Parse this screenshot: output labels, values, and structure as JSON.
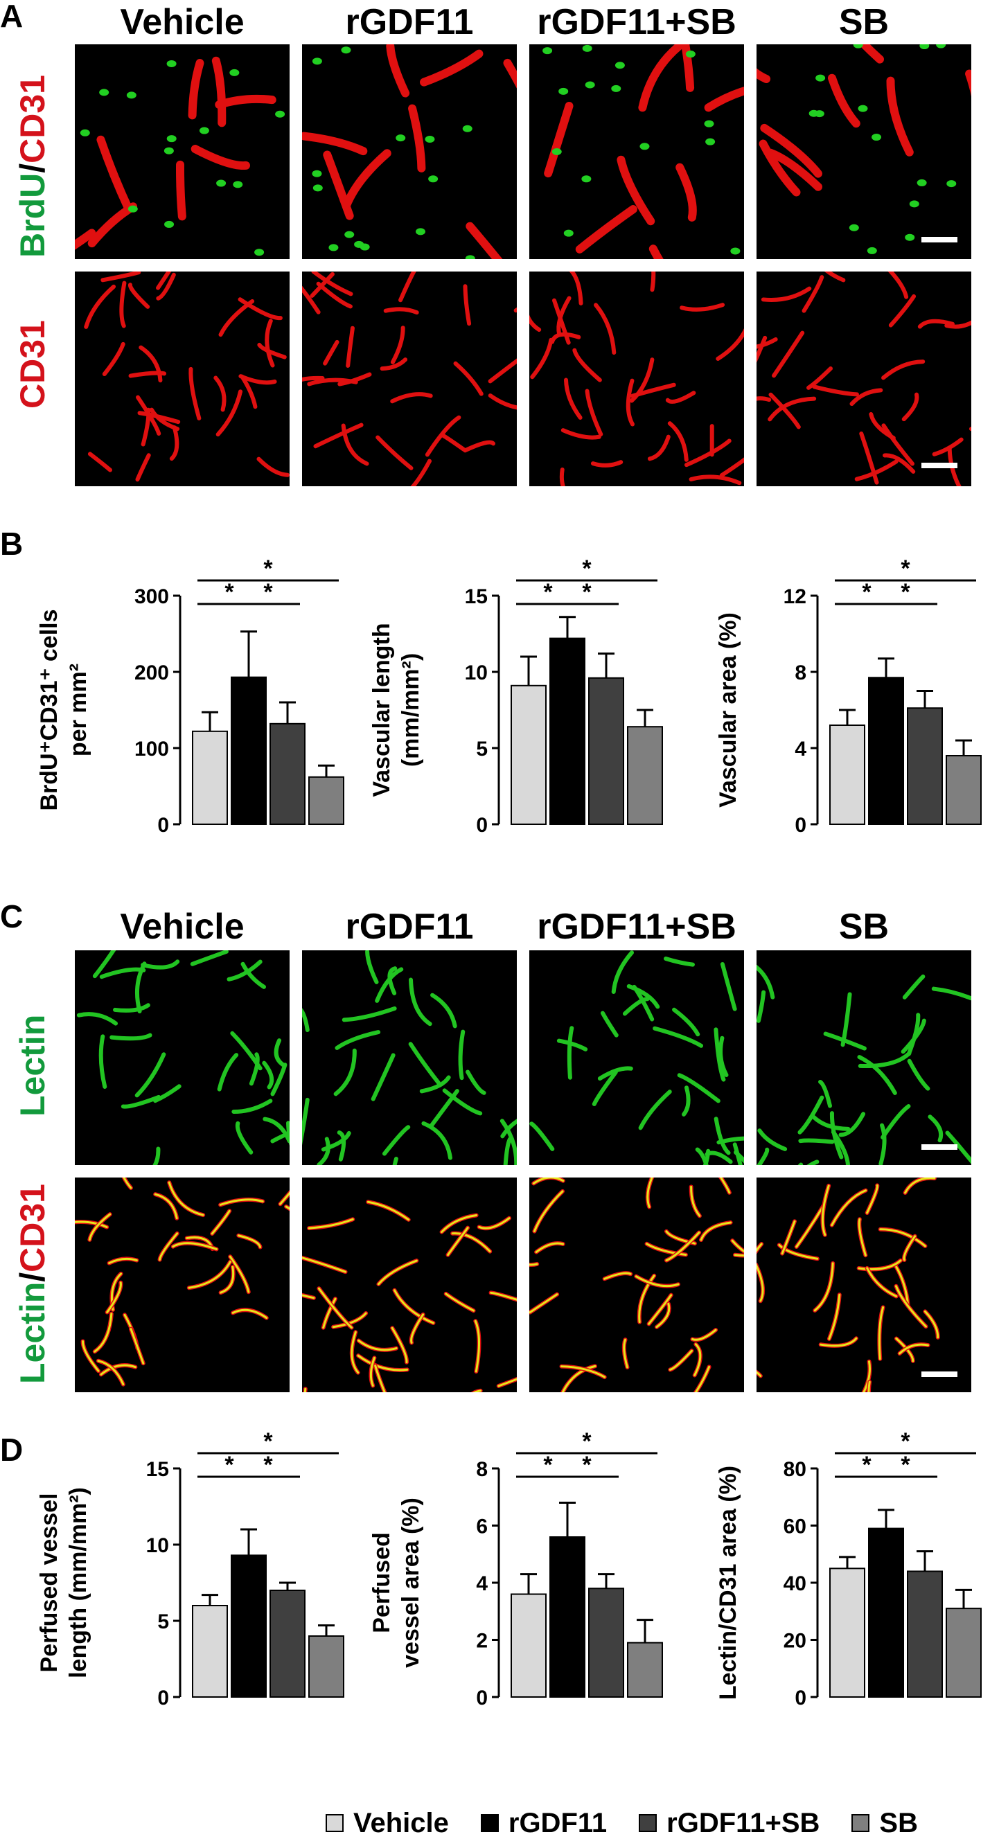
{
  "panels": {
    "a": "A",
    "b": "B",
    "c": "C",
    "d": "D"
  },
  "groups": [
    "Vehicle",
    "rGDF11",
    "rGDF11+SB",
    "SB"
  ],
  "row_labels": {
    "a_top": {
      "green": "BrdU",
      "sep": "/",
      "red": "CD31"
    },
    "a_bottom": {
      "red": "CD31"
    },
    "c_top": {
      "green": "Lectin"
    },
    "c_bottom": {
      "green": "Lectin",
      "sep": "/",
      "red": "CD31"
    }
  },
  "colors": {
    "vehicle": "#d9d9d9",
    "rgdf11": "#000000",
    "rgdf11_sb": "#404040",
    "sb": "#7f7f7f",
    "label_green": "#129a3c",
    "label_red": "#d4121b"
  },
  "chart_data": [
    {
      "type": "bar",
      "ylabel": "BrdU⁺CD31⁺ cells per mm²",
      "ylabel_lines": [
        "BrdU⁺CD31⁺ cells",
        "per mm²"
      ],
      "categories": [
        "Vehicle",
        "rGDF11",
        "rGDF11+SB",
        "SB"
      ],
      "values": [
        122,
        193,
        132,
        62
      ],
      "errors": [
        25,
        60,
        28,
        15
      ],
      "ylim": [
        0,
        300
      ],
      "yticks": [
        "0",
        "100",
        "200",
        "300"
      ],
      "significance": [
        "*",
        "*",
        "*"
      ]
    },
    {
      "type": "bar",
      "ylabel": "Vascular length (mm/mm²)",
      "ylabel_lines": [
        "Vascular length",
        "(mm/mm²)"
      ],
      "categories": [
        "Vehicle",
        "rGDF11",
        "rGDF11+SB",
        "SB"
      ],
      "values": [
        9.1,
        12.2,
        9.6,
        6.4
      ],
      "errors": [
        1.9,
        1.4,
        1.6,
        1.1
      ],
      "ylim": [
        0,
        15
      ],
      "yticks": [
        "0",
        "5",
        "10",
        "15"
      ],
      "significance": [
        "*",
        "*",
        "*"
      ]
    },
    {
      "type": "bar",
      "ylabel": "Vascular area (%)",
      "ylabel_lines": [
        "Vascular area (%)"
      ],
      "categories": [
        "Vehicle",
        "rGDF11",
        "rGDF11+SB",
        "SB"
      ],
      "values": [
        5.2,
        7.7,
        6.1,
        3.6
      ],
      "errors": [
        0.8,
        1.0,
        0.9,
        0.8
      ],
      "ylim": [
        0,
        12
      ],
      "yticks": [
        "0",
        "4",
        "8",
        "12"
      ],
      "significance": [
        "*",
        "*",
        "*"
      ]
    },
    {
      "type": "bar",
      "ylabel": "Perfused vessel length (mm/mm²)",
      "ylabel_lines": [
        "Perfused vessel",
        "length (mm/mm²)"
      ],
      "categories": [
        "Vehicle",
        "rGDF11",
        "rGDF11+SB",
        "SB"
      ],
      "values": [
        6.0,
        9.3,
        7.0,
        4.0
      ],
      "errors": [
        0.7,
        1.7,
        0.5,
        0.7
      ],
      "ylim": [
        0,
        15
      ],
      "yticks": [
        "0",
        "5",
        "10",
        "15"
      ],
      "significance": [
        "*",
        "*",
        "*"
      ]
    },
    {
      "type": "bar",
      "ylabel": "Perfused vessel area (%)",
      "ylabel_lines": [
        "Perfused",
        "vessel area (%)"
      ],
      "categories": [
        "Vehicle",
        "rGDF11",
        "rGDF11+SB",
        "SB"
      ],
      "values": [
        3.6,
        5.6,
        3.8,
        1.9
      ],
      "errors": [
        0.7,
        1.2,
        0.5,
        0.8
      ],
      "ylim": [
        0,
        8
      ],
      "yticks": [
        "0",
        "2",
        "4",
        "6",
        "8"
      ],
      "significance": [
        "*",
        "*",
        "*"
      ]
    },
    {
      "type": "bar",
      "ylabel": "Lectin/CD31 area (%)",
      "ylabel_lines": [
        "Lectin/CD31 area (%)"
      ],
      "categories": [
        "Vehicle",
        "rGDF11",
        "rGDF11+SB",
        "SB"
      ],
      "values": [
        45,
        59,
        44,
        31
      ],
      "errors": [
        4,
        6.5,
        7,
        6.5
      ],
      "ylim": [
        0,
        80
      ],
      "yticks": [
        "0",
        "20",
        "40",
        "60",
        "80"
      ],
      "significance": [
        "*",
        "*",
        "*"
      ]
    }
  ],
  "legend": [
    "Vehicle",
    "rGDF11",
    "rGDF11+SB",
    "SB"
  ]
}
